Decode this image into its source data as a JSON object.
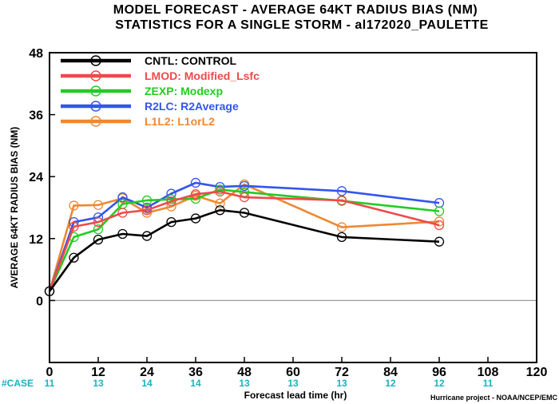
{
  "chart_data": {
    "type": "line",
    "title": "MODEL FORECAST - AVERAGE 64KT RADIUS BIAS (NM)",
    "subtitle": "STATISTICS FOR A SINGLE STORM - al172020_PAULETTE",
    "xlabel": "Forecast lead time (hr)",
    "ylabel": "AVERAGE 64KT RADIUS BIAS (NM)",
    "xlim": [
      0,
      120
    ],
    "ylim": [
      -12,
      48
    ],
    "x_ticks": [
      0,
      12,
      24,
      36,
      48,
      60,
      72,
      84,
      96,
      108,
      120
    ],
    "x_tick_labels": [
      "0",
      "12",
      "24",
      "36",
      "48",
      "60",
      "72",
      "84",
      "96",
      "108",
      "120"
    ],
    "y_ticks": [
      0,
      12,
      24,
      36,
      48
    ],
    "y_tick_labels": [
      "0",
      "12",
      "24",
      "36",
      "48"
    ],
    "legend_position": "top-left",
    "case_label": "#CASE",
    "case_x": [
      0,
      12,
      24,
      36,
      48,
      60,
      72,
      84,
      96,
      108
    ],
    "case_counts": [
      "11",
      "13",
      "14",
      "14",
      "13",
      "13",
      "13",
      "12",
      "12",
      "11"
    ],
    "credit": "Hurricane project - NOAA/NCEP/EMC",
    "series": [
      {
        "name": "CNTL: CONTROL",
        "color": "#000000",
        "x": [
          0,
          6,
          12,
          18,
          24,
          30,
          36,
          42,
          48,
          72,
          96
        ],
        "y": [
          1.8,
          8.3,
          11.8,
          12.9,
          12.5,
          15.2,
          15.9,
          17.5,
          17.0,
          12.3,
          11.4
        ]
      },
      {
        "name": "LMOD: Modified_Lsfc",
        "color": "#ee4a4a",
        "x": [
          0,
          6,
          12,
          18,
          24,
          30,
          36,
          42,
          48,
          72,
          96
        ],
        "y": [
          1.8,
          14.3,
          15.2,
          17.0,
          17.5,
          19.2,
          20.6,
          21.1,
          20.0,
          19.4,
          14.6
        ]
      },
      {
        "name": "ZEXP: Modexp",
        "color": "#22cc22",
        "x": [
          0,
          6,
          12,
          18,
          24,
          30,
          36,
          42,
          48,
          72,
          96
        ],
        "y": [
          1.8,
          12.3,
          13.8,
          18.7,
          19.4,
          19.6,
          19.7,
          21.5,
          21.0,
          19.3,
          17.3
        ]
      },
      {
        "name": "R2LC: R2Average",
        "color": "#3355ee",
        "x": [
          0,
          6,
          12,
          18,
          24,
          30,
          36,
          42,
          48,
          72,
          96
        ],
        "y": [
          1.8,
          15.2,
          16.1,
          20.0,
          18.0,
          20.7,
          22.8,
          22.0,
          22.2,
          21.2,
          18.9
        ]
      },
      {
        "name": "L1L2: L1orL2",
        "color": "#ee8833",
        "x": [
          0,
          6,
          12,
          18,
          24,
          30,
          36,
          42,
          48,
          72,
          96
        ],
        "y": [
          1.8,
          18.4,
          18.5,
          19.8,
          17.0,
          18.2,
          20.3,
          18.8,
          22.5,
          14.2,
          15.3
        ]
      }
    ]
  }
}
